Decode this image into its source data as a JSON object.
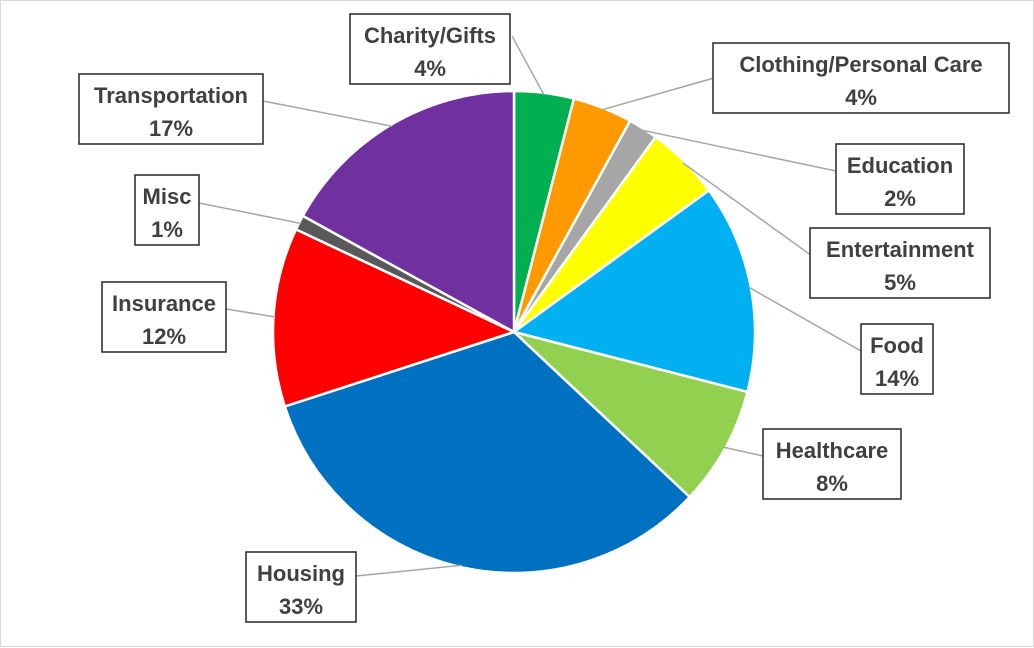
{
  "chart_data": {
    "type": "pie",
    "title": "",
    "slices": [
      {
        "name": "Charity/Gifts",
        "value": 4,
        "label": "4%",
        "color": "#00b050"
      },
      {
        "name": "Clothing/Personal Care",
        "value": 4,
        "label": "4%",
        "color": "#ff9900"
      },
      {
        "name": "Education",
        "value": 2,
        "label": "2%",
        "color": "#a6a6a6"
      },
      {
        "name": "Entertainment",
        "value": 5,
        "label": "5%",
        "color": "#ffff00"
      },
      {
        "name": "Food",
        "value": 14,
        "label": "14%",
        "color": "#00b0f0"
      },
      {
        "name": "Healthcare",
        "value": 8,
        "label": "8%",
        "color": "#92d050"
      },
      {
        "name": "Housing",
        "value": 33,
        "label": "33%",
        "color": "#0070c0"
      },
      {
        "name": "Insurance",
        "value": 12,
        "label": "12%",
        "color": "#ff0000"
      },
      {
        "name": "Misc",
        "value": 1,
        "label": "1%",
        "color": "#595959"
      },
      {
        "name": "Transportation",
        "value": 17,
        "label": "17%",
        "color": "#7030a0"
      }
    ],
    "legend": "none",
    "start_angle": "12 o'clock, clockwise",
    "label_style": "callout boxes with leader lines"
  }
}
